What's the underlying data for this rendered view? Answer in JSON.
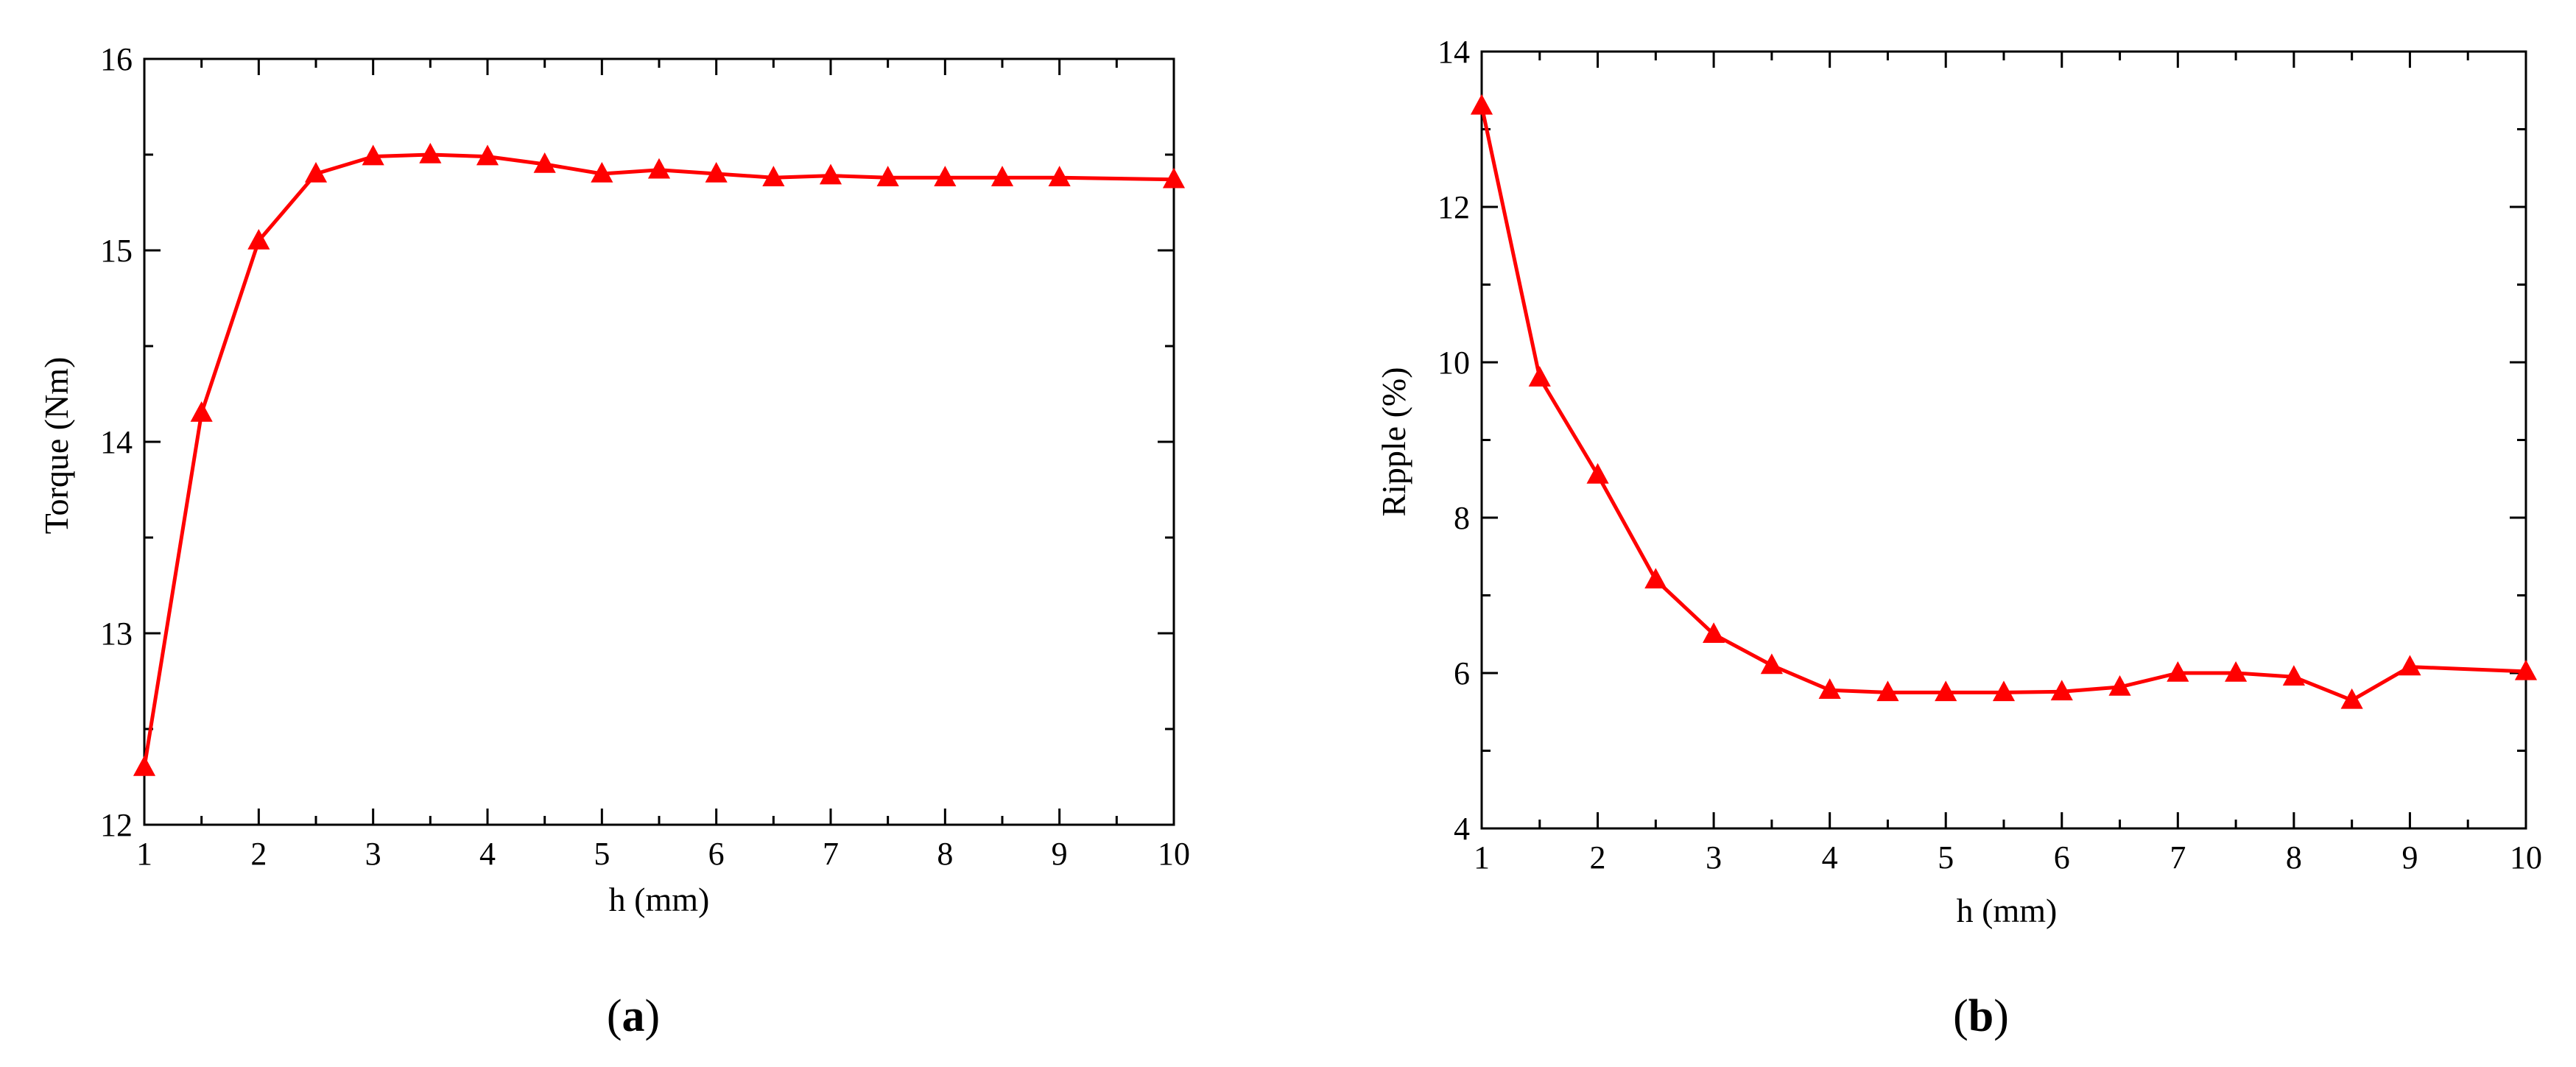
{
  "colors": {
    "series": "#ff0000",
    "axis": "#000000",
    "background": "#ffffff"
  },
  "chart_data": [
    {
      "type": "line",
      "panel_label": {
        "open": "(",
        "letter": "a",
        "close": ")"
      },
      "xlabel": "h (mm)",
      "ylabel": "Torque (Nm)",
      "xlim": [
        1,
        10
      ],
      "ylim": [
        12,
        16
      ],
      "xticks": [
        "1",
        "2",
        "3",
        "4",
        "5",
        "6",
        "7",
        "8",
        "9",
        "10"
      ],
      "yticks": [
        "12",
        "13",
        "14",
        "15",
        "16"
      ],
      "grid": false,
      "legend": "none",
      "marker": "triangle",
      "series": [
        {
          "x": [
            1,
            1.5,
            2,
            2.5,
            3,
            3.5,
            4,
            4.5,
            5,
            5.5,
            6,
            6.5,
            7,
            7.5,
            8,
            8.5,
            9,
            10
          ],
          "y": [
            12.3,
            14.15,
            15.05,
            15.4,
            15.49,
            15.5,
            15.49,
            15.45,
            15.4,
            15.42,
            15.4,
            15.38,
            15.39,
            15.38,
            15.38,
            15.38,
            15.38,
            15.37
          ]
        }
      ]
    },
    {
      "type": "line",
      "panel_label": {
        "open": "(",
        "letter": "b",
        "close": ")"
      },
      "xlabel": "h (mm)",
      "ylabel": "Ripple (%)",
      "xlim": [
        1,
        10
      ],
      "ylim": [
        4,
        14
      ],
      "xticks": [
        "1",
        "2",
        "3",
        "4",
        "5",
        "6",
        "7",
        "8",
        "9",
        "10"
      ],
      "yticks": [
        "4",
        "6",
        "8",
        "10",
        "12",
        "14"
      ],
      "grid": false,
      "legend": "none",
      "marker": "triangle",
      "series": [
        {
          "x": [
            1,
            1.5,
            2,
            2.5,
            3,
            3.5,
            4,
            4.5,
            5,
            5.5,
            6,
            6.5,
            7,
            7.5,
            8,
            8.5,
            9,
            10
          ],
          "y": [
            13.3,
            9.8,
            8.55,
            7.2,
            6.5,
            6.1,
            5.78,
            5.75,
            5.75,
            5.75,
            5.76,
            5.82,
            6.0,
            6.0,
            5.95,
            5.65,
            6.08,
            6.02
          ]
        }
      ]
    }
  ]
}
